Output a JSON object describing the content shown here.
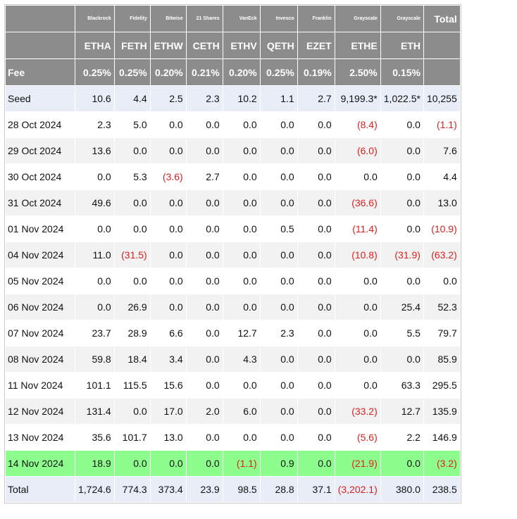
{
  "header": {
    "issuers": [
      "Blackrock",
      "Fidelity",
      "Bitwise",
      "21 Shares",
      "VanEck",
      "Invesco",
      "Franklin",
      "Grayscale",
      "Grayscale"
    ],
    "total_label": "Total",
    "tickers": [
      "ETHA",
      "FETH",
      "ETHW",
      "CETH",
      "ETHV",
      "QETH",
      "EZET",
      "ETHE",
      "ETH"
    ],
    "fee_label": "Fee",
    "fees": [
      "0.25%",
      "0.25%",
      "0.20%",
      "0.21%",
      "0.20%",
      "0.25%",
      "0.19%",
      "2.50%",
      "0.15%"
    ]
  },
  "rows": [
    {
      "label": "Seed",
      "values": [
        "10.6",
        "4.4",
        "2.5",
        "2.3",
        "10.2",
        "1.1",
        "2.7",
        "9,199.3*",
        "1,022.5*",
        "10,255"
      ]
    },
    {
      "label": "28 Oct 2024",
      "values": [
        "2.3",
        "5.0",
        "0.0",
        "0.0",
        "0.0",
        "0.0",
        "0.0",
        "(8.4)",
        "0.0",
        "(1.1)"
      ]
    },
    {
      "label": "29 Oct 2024",
      "values": [
        "13.6",
        "0.0",
        "0.0",
        "0.0",
        "0.0",
        "0.0",
        "0.0",
        "(6.0)",
        "0.0",
        "7.6"
      ]
    },
    {
      "label": "30 Oct 2024",
      "values": [
        "0.0",
        "5.3",
        "(3.6)",
        "2.7",
        "0.0",
        "0.0",
        "0.0",
        "0.0",
        "0.0",
        "4.4"
      ]
    },
    {
      "label": "31 Oct 2024",
      "values": [
        "49.6",
        "0.0",
        "0.0",
        "0.0",
        "0.0",
        "0.0",
        "0.0",
        "(36.6)",
        "0.0",
        "13.0"
      ]
    },
    {
      "label": "01 Nov 2024",
      "values": [
        "0.0",
        "0.0",
        "0.0",
        "0.0",
        "0.0",
        "0.5",
        "0.0",
        "(11.4)",
        "0.0",
        "(10.9)"
      ]
    },
    {
      "label": "04 Nov 2024",
      "values": [
        "11.0",
        "(31.5)",
        "0.0",
        "0.0",
        "0.0",
        "0.0",
        "0.0",
        "(10.8)",
        "(31.9)",
        "(63.2)"
      ]
    },
    {
      "label": "05 Nov 2024",
      "values": [
        "0.0",
        "0.0",
        "0.0",
        "0.0",
        "0.0",
        "0.0",
        "0.0",
        "0.0",
        "0.0",
        "0.0"
      ]
    },
    {
      "label": "06 Nov 2024",
      "values": [
        "0.0",
        "26.9",
        "0.0",
        "0.0",
        "0.0",
        "0.0",
        "0.0",
        "0.0",
        "25.4",
        "52.3"
      ]
    },
    {
      "label": "07 Nov 2024",
      "values": [
        "23.7",
        "28.9",
        "6.6",
        "0.0",
        "12.7",
        "2.3",
        "0.0",
        "0.0",
        "5.5",
        "79.7"
      ]
    },
    {
      "label": "08 Nov 2024",
      "values": [
        "59.8",
        "18.4",
        "3.4",
        "0.0",
        "4.3",
        "0.0",
        "0.0",
        "0.0",
        "0.0",
        "85.9"
      ]
    },
    {
      "label": "11 Nov 2024",
      "values": [
        "101.1",
        "115.5",
        "15.6",
        "0.0",
        "0.0",
        "0.0",
        "0.0",
        "0.0",
        "63.3",
        "295.5"
      ]
    },
    {
      "label": "12 Nov 2024",
      "values": [
        "131.4",
        "0.0",
        "17.0",
        "2.0",
        "6.0",
        "0.0",
        "0.0",
        "(33.2)",
        "12.7",
        "135.9"
      ]
    },
    {
      "label": "13 Nov 2024",
      "values": [
        "35.6",
        "101.7",
        "13.0",
        "0.0",
        "0.0",
        "0.0",
        "0.0",
        "(5.6)",
        "2.2",
        "146.9"
      ]
    },
    {
      "label": "14 Nov 2024",
      "values": [
        "18.9",
        "0.0",
        "0.0",
        "0.0",
        "(1.1)",
        "0.9",
        "0.0",
        "(21.9)",
        "0.0",
        "(3.2)"
      ]
    },
    {
      "label": "Total",
      "values": [
        "1,724.6",
        "774.3",
        "373.4",
        "23.9",
        "98.5",
        "28.8",
        "37.1",
        "(3,202.1)",
        "380.0",
        "238.5"
      ]
    }
  ],
  "colors": {
    "header_bg": "#8c8c8c",
    "seed_total_bg": "#e8edf8",
    "highlight_bg": "#8dfd8d",
    "stripe_bg": "#f2f2f2",
    "negative_text": "#e02020"
  }
}
